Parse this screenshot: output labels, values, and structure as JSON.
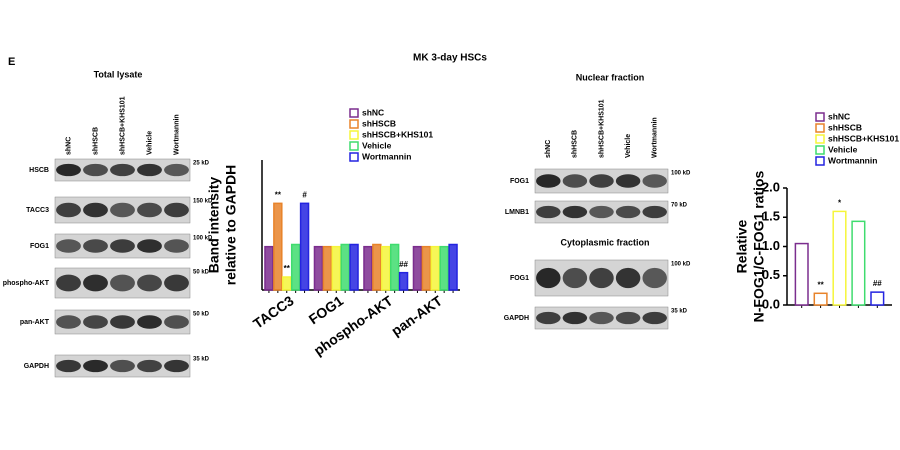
{
  "figure": {
    "panel": "E",
    "title": "MK 3-day HSCs",
    "total_lysate": {
      "title": "Total lysate",
      "lanes": [
        "shNC",
        "shHSCB",
        "shHSCB+KHS101",
        "Vehicle",
        "Wortmannin"
      ],
      "rows": [
        {
          "label": "HSCB",
          "marker": "25 kD"
        },
        {
          "label": "TACC3",
          "marker": "150 kD"
        },
        {
          "label": "FOG1",
          "marker": "100 kD"
        },
        {
          "label": "phospho-AKT",
          "marker": "50 kD"
        },
        {
          "label": "pan-AKT",
          "marker": "50 kD"
        },
        {
          "label": "GAPDH",
          "marker": "35 kD"
        }
      ]
    },
    "nuclear": {
      "title": "Nuclear fraction",
      "lanes": [
        "shNC",
        "shHSCB",
        "shHSCB+KHS101",
        "Vehicle",
        "Wortmannin"
      ],
      "rows": [
        {
          "label": "FOG1",
          "marker": "100 kD"
        },
        {
          "label": "LMNB1",
          "marker": "70 kD"
        }
      ]
    },
    "cytoplasmic": {
      "title": "Cytoplasmic fraction",
      "rows": [
        {
          "label": "FOG1",
          "marker": "100 kD"
        },
        {
          "label": "GAPDH",
          "marker": "35 kD"
        }
      ]
    }
  },
  "chart_data": [
    {
      "type": "bar",
      "y_label": [
        "Band intensity",
        "relative to GAPDH"
      ],
      "categories": [
        "TACC3",
        "FOG1",
        "phospho-AKT",
        "pan-AKT"
      ],
      "ylim": [
        0,
        3
      ],
      "style": "filled",
      "series": [
        {
          "name": "shNC",
          "color": "#7b2d8e",
          "values": [
            1.0,
            1.0,
            1.0,
            1.0
          ],
          "annotations": [
            null,
            null,
            null,
            null
          ]
        },
        {
          "name": "shHSCB",
          "color": "#e8832a",
          "values": [
            2.0,
            1.0,
            1.05,
            1.0
          ],
          "annotations": [
            "**",
            null,
            null,
            null
          ]
        },
        {
          "name": "shHSCB+KHS101",
          "color": "#f5f53a",
          "values": [
            0.3,
            1.0,
            1.0,
            1.0
          ],
          "annotations": [
            "**",
            null,
            null,
            null
          ]
        },
        {
          "name": "Vehicle",
          "color": "#3fdc6e",
          "values": [
            1.05,
            1.05,
            1.05,
            1.0
          ],
          "annotations": [
            null,
            null,
            null,
            null
          ]
        },
        {
          "name": "Wortmannin",
          "color": "#2424e0",
          "values": [
            2.0,
            1.05,
            0.4,
            1.05
          ],
          "annotations": [
            "#",
            null,
            "##",
            null
          ]
        }
      ]
    },
    {
      "type": "bar",
      "y_label": [
        "Relative",
        "N-FOG1/C-FOG1 ratios"
      ],
      "categories": [
        null
      ],
      "ylim": [
        0,
        2.0
      ],
      "style": "outline",
      "yticks": [
        {
          "value": 0,
          "label": "0.0"
        },
        {
          "value": 0.5,
          "label": "0.5"
        },
        {
          "value": 1.0,
          "label": "1.0"
        },
        {
          "value": 1.5,
          "label": "1.5"
        },
        {
          "value": 2.0,
          "label": "2.0"
        }
      ],
      "series": [
        {
          "name": "shNC",
          "color": "#7b2d8e",
          "values": [
            1.05
          ],
          "annotations": [
            null
          ]
        },
        {
          "name": "shHSCB",
          "color": "#e8832a",
          "values": [
            0.2
          ],
          "annotations": [
            "**"
          ]
        },
        {
          "name": "shHSCB+KHS101",
          "color": "#f5f53a",
          "values": [
            1.6
          ],
          "annotations": [
            "*"
          ]
        },
        {
          "name": "Vehicle",
          "color": "#3fdc6e",
          "values": [
            1.43
          ],
          "annotations": [
            null
          ]
        },
        {
          "name": "Wortmannin",
          "color": "#2424e0",
          "values": [
            0.22
          ],
          "annotations": [
            "##"
          ]
        }
      ]
    }
  ]
}
